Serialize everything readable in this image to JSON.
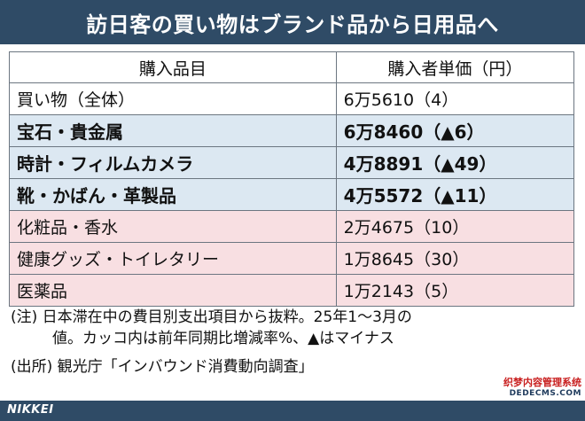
{
  "title": "訪日客の買い物はブランド品から日用品へ",
  "table": {
    "headers": [
      "購入品目",
      "購入者単価（円）"
    ],
    "rows": [
      {
        "item": "買い物（全体）",
        "value": "6万5610（4）"
      },
      {
        "item": "宝石・貴金属",
        "value": "6万8460（▲6）"
      },
      {
        "item": "時計・フィルムカメラ",
        "value": "4万8891（▲49）"
      },
      {
        "item": "靴・かばん・革製品",
        "value": "4万5572（▲11）"
      },
      {
        "item": "化粧品・香水",
        "value": "2万4675（10）"
      },
      {
        "item": "健康グッズ・トイレタリー",
        "value": "1万8645（30）"
      },
      {
        "item": "医薬品",
        "value": "1万2143（5）"
      }
    ]
  },
  "notes": {
    "line1": "(注) 日本滞在中の費目別支出項目から抜粋。25年1～3月の",
    "line2": "値。カッコ内は前年同期比増減率%、▲はマイナス",
    "source": "(出所) 観光庁「インバウンド消費動向調査」"
  },
  "footer": {
    "logo": "NIKKEI"
  },
  "watermark": {
    "line1": "织梦内容管理系统",
    "line2": "DEDECMS.COM"
  },
  "colors": {
    "title_bar": "#2f4b66",
    "highlight_blue": "#dce8f2",
    "highlight_pink": "#f8dfe2"
  }
}
